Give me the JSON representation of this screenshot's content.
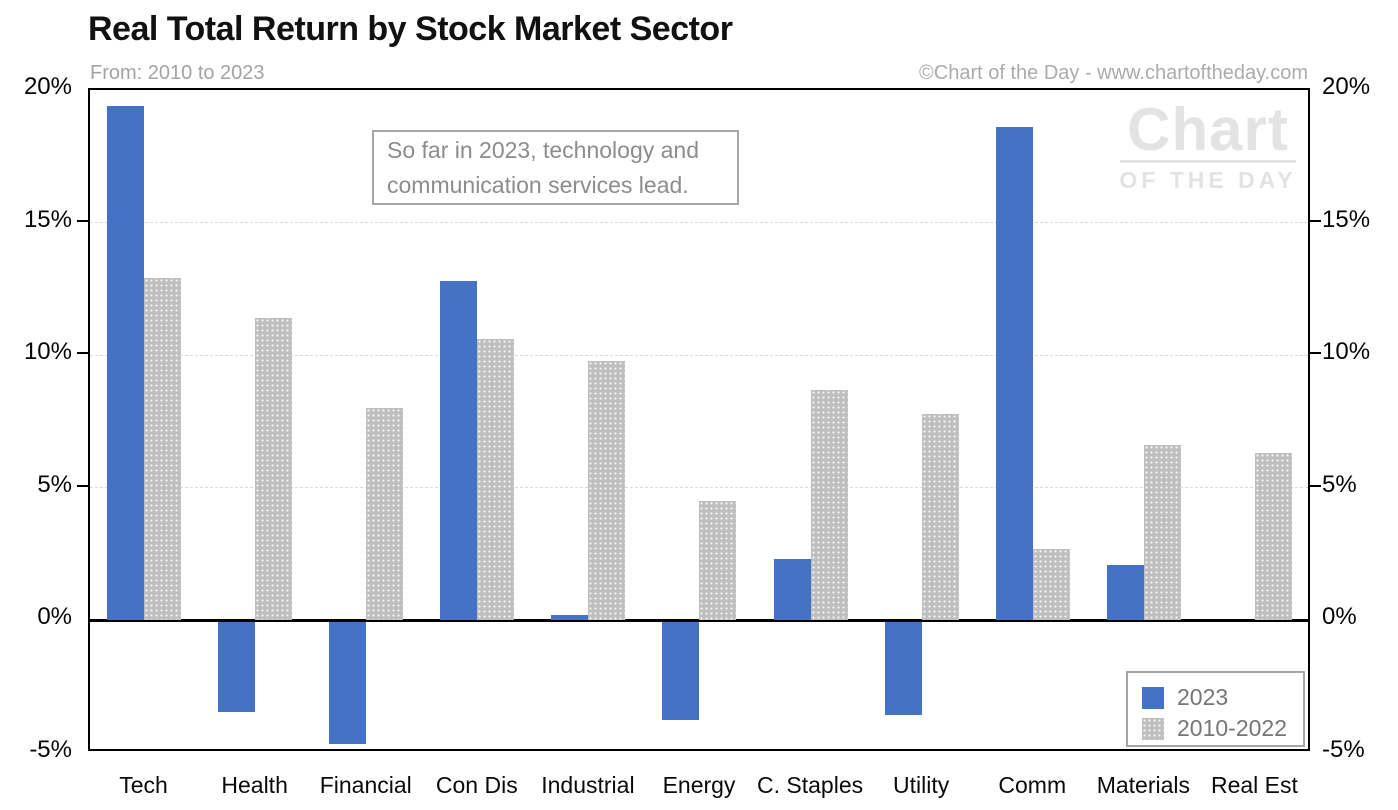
{
  "title": "Real Total Return by Stock Market Sector",
  "subtitle": "From: 2010 to 2023",
  "copyright": "©Chart of the Day - www.chartoftheday.com",
  "annotation": {
    "line1": "So far in 2023, technology and",
    "line2": "communication services lead."
  },
  "watermark": {
    "line1": "Chart",
    "line2": "OF THE DAY"
  },
  "colors": {
    "accent_blue": "#4472C4",
    "bar_gray": "#BFBFBF",
    "gridline": "#D9D9D9",
    "axis_black": "#000000",
    "muted_text": "#8C8C8C",
    "box_border": "#A6A6A6",
    "watermark_gray": "#E3E3E3"
  },
  "chart_data": {
    "type": "bar",
    "title": "Real Total Return by Stock Market Sector",
    "subtitle": "From: 2010 to 2023",
    "categories": [
      "Tech",
      "Health",
      "Financial",
      "Con Dis",
      "Industrial",
      "Energy",
      "C. Staples",
      "Utility",
      "Comm",
      "Materials",
      "Real Est"
    ],
    "series": [
      {
        "name": "2023",
        "color": "#4472C4",
        "pattern": "solid",
        "values": [
          19.4,
          -3.4,
          -4.6,
          12.8,
          0.2,
          -3.7,
          2.3,
          -3.5,
          18.6,
          2.1,
          0.0
        ]
      },
      {
        "name": "2010-2022",
        "color": "#BFBFBF",
        "pattern": "dots",
        "values": [
          12.9,
          11.4,
          8.0,
          10.6,
          9.8,
          4.5,
          8.7,
          7.8,
          2.7,
          6.6,
          6.3
        ]
      }
    ],
    "xlabel": "",
    "ylabel": "",
    "ylim": [
      -5,
      20
    ],
    "yticks": [
      {
        "value": 20,
        "label": "20%"
      },
      {
        "value": 15,
        "label": "15%"
      },
      {
        "value": 10,
        "label": "10%"
      },
      {
        "value": 5,
        "label": "5%"
      },
      {
        "value": 0,
        "label": "0%"
      },
      {
        "value": -5,
        "label": "-5%"
      }
    ],
    "gridlines": [
      15,
      10,
      5
    ],
    "grid": "horizontal-dashed",
    "axis_labels_both_sides": true,
    "legend_position": "bottom-right"
  }
}
